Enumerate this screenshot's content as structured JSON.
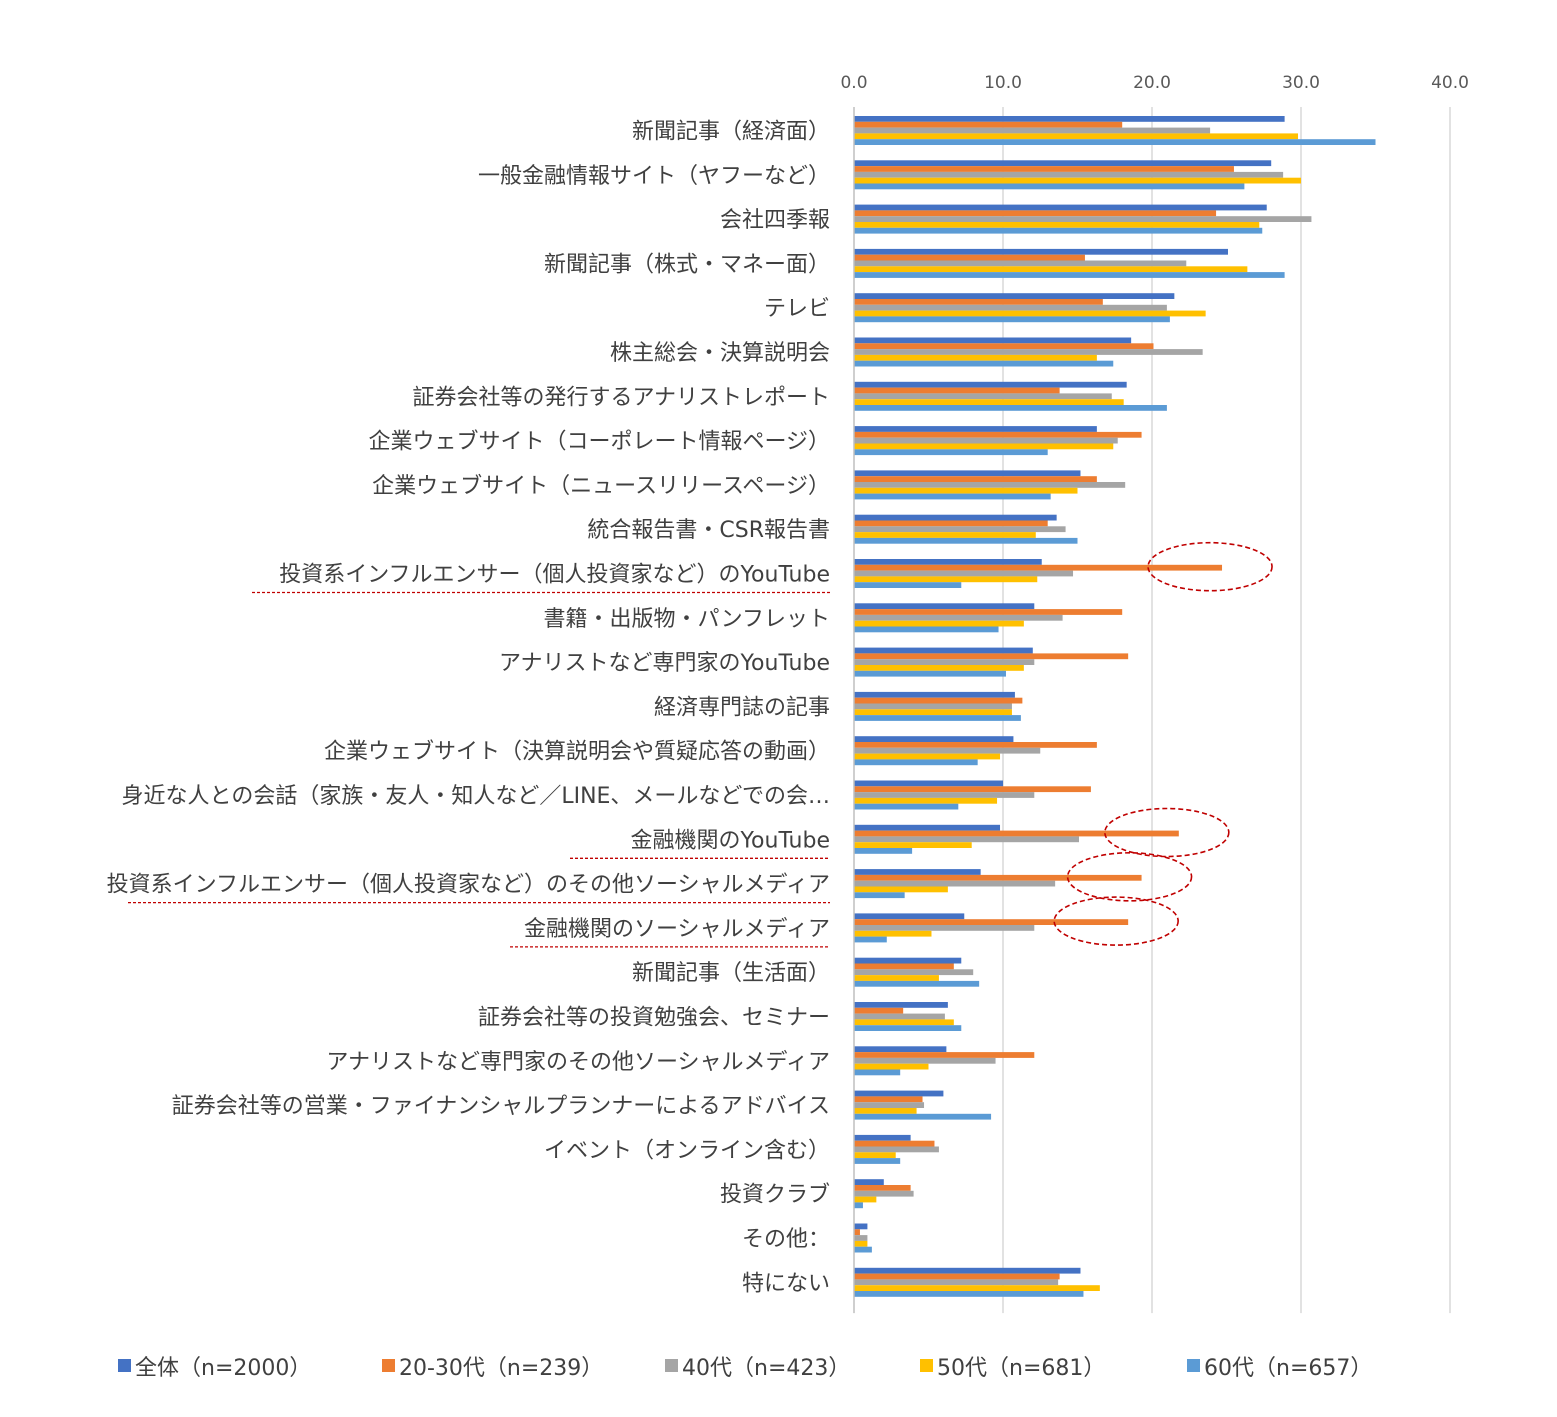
{
  "chart_data": {
    "type": "bar",
    "orientation": "horizontal",
    "title": "",
    "xlabel": "",
    "ylabel": "",
    "xlim": [
      0,
      40
    ],
    "x_ticks": [
      "0.0",
      "10.0",
      "20.0",
      "30.0",
      "40.0"
    ],
    "grid": true,
    "legend_position": "bottom",
    "categories": [
      "新聞記事（経済面）",
      "一般金融情報サイト（ヤフーなど）",
      "会社四季報",
      "新聞記事（株式・マネー面）",
      "テレビ",
      "株主総会・決算説明会",
      "証券会社等の発行するアナリストレポート",
      "企業ウェブサイト（コーポレート情報ページ）",
      "企業ウェブサイト（ニュースリリースページ）",
      "統合報告書・CSR報告書",
      "投資系インフルエンサー（個人投資家など）のYouTube",
      "書籍・出版物・パンフレット",
      "アナリストなど専門家のYouTube",
      "経済専門誌の記事",
      "企業ウェブサイト（決算説明会や質疑応答の動画）",
      "身近な人との会話（家族・友人・知人など／LINE、メールなどでの会…",
      "金融機関のYouTube",
      "投資系インフルエンサー（個人投資家など）のその他ソーシャルメディア",
      "金融機関のソーシャルメディア",
      "新聞記事（生活面）",
      "証券会社等の投資勉強会、セミナー",
      "アナリストなど専門家のその他ソーシャルメディア",
      "証券会社等の営業・ファイナンシャルプランナーによるアドバイス",
      "イベント（オンライン含む）",
      "投資クラブ",
      "その他：",
      "特にない"
    ],
    "series": [
      {
        "name": "全体（n=2000）",
        "color": "#4472C4",
        "values": [
          28.9,
          28.0,
          27.7,
          25.1,
          21.5,
          18.6,
          18.3,
          16.3,
          15.2,
          13.6,
          12.6,
          12.1,
          12.0,
          10.8,
          10.7,
          10.0,
          9.8,
          8.5,
          7.4,
          7.2,
          6.3,
          6.2,
          6.0,
          3.8,
          2.0,
          0.9,
          15.2
        ]
      },
      {
        "name": "20-30代（n=239）",
        "color": "#ED7D31",
        "values": [
          18.0,
          25.5,
          24.3,
          15.5,
          16.7,
          20.1,
          13.8,
          19.3,
          16.3,
          13.0,
          24.7,
          18.0,
          18.4,
          11.3,
          16.3,
          15.9,
          21.8,
          19.3,
          18.4,
          6.7,
          3.3,
          12.1,
          4.6,
          5.4,
          3.8,
          0.4,
          13.8
        ]
      },
      {
        "name": "40代（n=423）",
        "color": "#A5A5A5",
        "values": [
          23.9,
          28.8,
          30.7,
          22.3,
          21.0,
          23.4,
          17.3,
          17.7,
          18.2,
          14.2,
          14.7,
          14.0,
          12.1,
          10.6,
          12.5,
          12.1,
          15.1,
          13.5,
          12.1,
          8.0,
          6.1,
          9.5,
          4.7,
          5.7,
          4.0,
          0.9,
          13.7
        ]
      },
      {
        "name": "50代（n=681）",
        "color": "#FFC000",
        "values": [
          29.8,
          30.0,
          27.2,
          26.4,
          23.6,
          16.3,
          18.1,
          17.4,
          15.0,
          12.2,
          12.3,
          11.4,
          11.4,
          10.6,
          9.8,
          9.6,
          7.9,
          6.3,
          5.2,
          5.7,
          6.7,
          5.0,
          4.2,
          2.8,
          1.5,
          0.9,
          16.5
        ]
      },
      {
        "name": "60代（n=657）",
        "color": "#5B9BD5",
        "values": [
          35.0,
          26.2,
          27.4,
          28.9,
          21.2,
          17.4,
          21.0,
          13.0,
          13.2,
          15.0,
          7.2,
          9.7,
          10.2,
          11.2,
          8.3,
          7.0,
          3.9,
          3.4,
          2.2,
          8.4,
          7.2,
          3.1,
          9.2,
          3.1,
          0.6,
          1.2,
          15.4
        ]
      }
    ]
  },
  "annotations": {
    "color": "#C00000",
    "highlighted_categories": [
      10,
      16,
      17,
      18
    ]
  }
}
